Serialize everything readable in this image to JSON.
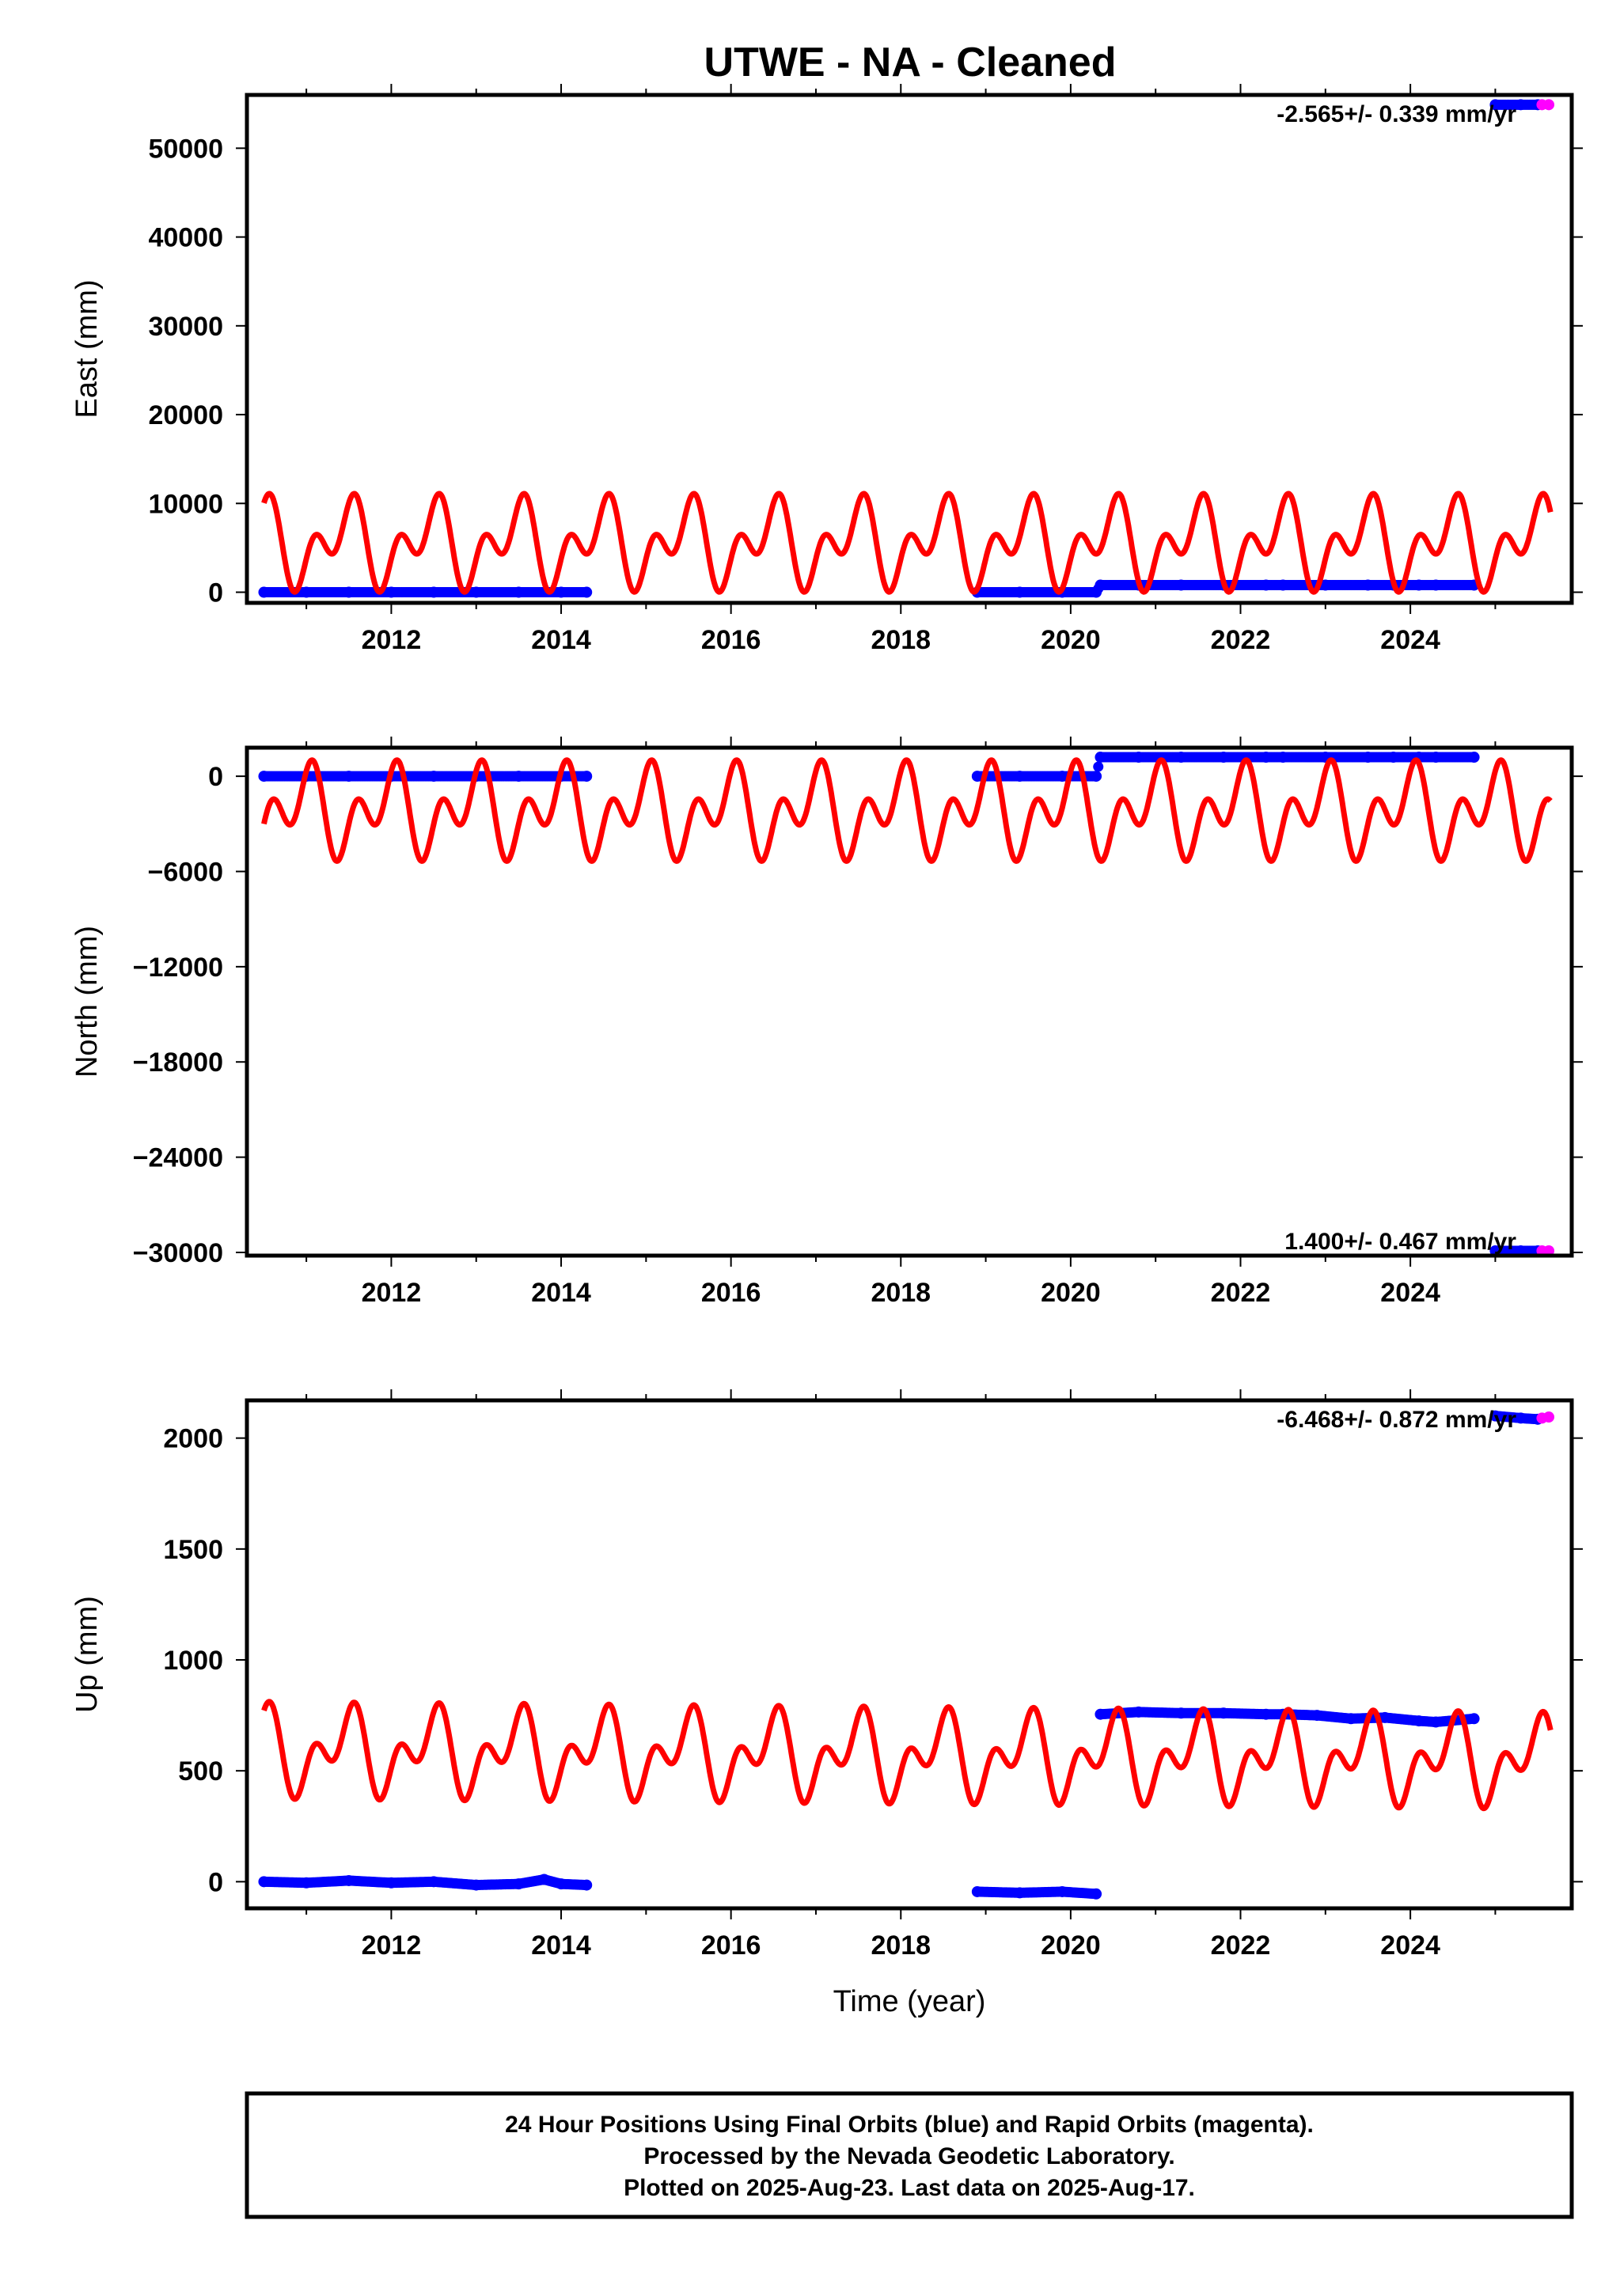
{
  "title": "UTWE  - NA - Cleaned",
  "footer": {
    "lines": [
      "24 Hour Positions Using Final Orbits (blue) and Rapid Orbits (magenta).",
      "Processed by the Nevada Geodetic Laboratory.",
      "Plotted on 2025-Aug-23. Last data on 2025-Aug-17."
    ]
  },
  "colors": {
    "final_orbits": "#0000ff",
    "rapid_orbits": "#ff00ff",
    "model_fit": "#ff0000"
  },
  "chart_data": [
    {
      "type": "scatter",
      "panel": "East",
      "ylabel": "East (mm)",
      "xlabel": "",
      "xlim": [
        2010.3,
        2025.9
      ],
      "ylim": [
        -1200,
        56000
      ],
      "x_ticks": [
        "2012",
        "2014",
        "2016",
        "2018",
        "2020",
        "2022",
        "2024"
      ],
      "y_ticks": [
        "0",
        "10000",
        "20000",
        "30000",
        "40000",
        "50000"
      ],
      "y_tick_values": [
        0,
        10000,
        20000,
        30000,
        40000,
        50000
      ],
      "rate_label": "-2.565+/- 0.339 mm/yr",
      "series": [
        {
          "points_final": [
            [
              2010.5,
              0
            ],
            [
              2011.0,
              0
            ],
            [
              2011.5,
              0
            ],
            [
              2012.0,
              0
            ],
            [
              2012.5,
              0
            ],
            [
              2013.0,
              0
            ],
            [
              2013.5,
              0
            ],
            [
              2014.0,
              0
            ],
            [
              2014.3,
              0
            ],
            [
              2018.9,
              0
            ],
            [
              2019.4,
              0
            ],
            [
              2019.9,
              0
            ],
            [
              2020.3,
              0
            ],
            [
              2020.35,
              800
            ],
            [
              2020.8,
              800
            ],
            [
              2021.3,
              800
            ],
            [
              2021.8,
              800
            ],
            [
              2022.3,
              800
            ],
            [
              2022.5,
              800
            ],
            [
              2023.0,
              800
            ],
            [
              2023.5,
              800
            ],
            [
              2023.8,
              800
            ],
            [
              2024.1,
              800
            ],
            [
              2024.3,
              800
            ],
            [
              2024.75,
              800
            ],
            [
              2025.0,
              54900
            ],
            [
              2025.3,
              54900
            ],
            [
              2025.5,
              54900
            ]
          ],
          "points_rapid": [
            [
              2025.55,
              54900
            ],
            [
              2025.63,
              54900
            ]
          ]
        }
      ],
      "model": {
        "offset": 5500,
        "annual_amp": 3200,
        "semiannual_amp": 3100,
        "annual_phase": 0.2,
        "semiannual_phase": -1.1
      }
    },
    {
      "type": "scatter",
      "panel": "North",
      "ylabel": "North (mm)",
      "xlabel": "",
      "xlim": [
        2010.3,
        2025.9
      ],
      "ylim": [
        -30200,
        1800
      ],
      "x_ticks": [
        "2012",
        "2014",
        "2016",
        "2018",
        "2020",
        "2022",
        "2024"
      ],
      "y_ticks": [
        "0",
        "−6000",
        "−12000",
        "−18000",
        "−24000",
        "−30000"
      ],
      "y_tick_values": [
        0,
        -6000,
        -12000,
        -18000,
        -24000,
        -30000
      ],
      "rate_label": "1.400+/- 0.467 mm/yr",
      "series": [
        {
          "points_final": [
            [
              2010.5,
              0
            ],
            [
              2011.0,
              0
            ],
            [
              2011.5,
              0
            ],
            [
              2012.0,
              0
            ],
            [
              2012.5,
              0
            ],
            [
              2013.0,
              0
            ],
            [
              2013.5,
              0
            ],
            [
              2014.0,
              0
            ],
            [
              2014.3,
              0
            ],
            [
              2018.9,
              0
            ],
            [
              2019.4,
              0
            ],
            [
              2019.9,
              0
            ],
            [
              2020.3,
              0
            ],
            [
              2020.35,
              1200
            ],
            [
              2020.8,
              1200
            ],
            [
              2021.3,
              1200
            ],
            [
              2021.8,
              1200
            ],
            [
              2022.3,
              1200
            ],
            [
              2022.5,
              1200
            ],
            [
              2023.0,
              1200
            ],
            [
              2023.5,
              1200
            ],
            [
              2023.8,
              1200
            ],
            [
              2024.1,
              1200
            ],
            [
              2024.3,
              1200
            ],
            [
              2024.75,
              1200
            ],
            [
              2025.0,
              -29900
            ],
            [
              2025.3,
              -29900
            ],
            [
              2025.5,
              -29900
            ]
          ],
          "points_rapid": [
            [
              2025.55,
              -29900
            ],
            [
              2025.63,
              -29900
            ]
          ]
        }
      ],
      "model": {
        "offset": -2200,
        "annual_amp": -1700,
        "semiannual_amp": 1900,
        "annual_phase": 0.2,
        "semiannual_phase": -1.1
      }
    },
    {
      "type": "scatter",
      "panel": "Up",
      "ylabel": "Up (mm)",
      "xlabel": "Time (year)",
      "xlim": [
        2010.3,
        2025.9
      ],
      "ylim": [
        -120,
        2170
      ],
      "x_ticks": [
        "2012",
        "2014",
        "2016",
        "2018",
        "2020",
        "2022",
        "2024"
      ],
      "y_ticks": [
        "0",
        "500",
        "1000",
        "1500",
        "2000"
      ],
      "y_tick_values": [
        0,
        500,
        1000,
        1500,
        2000
      ],
      "rate_label": "-6.468+/- 0.872 mm/yr",
      "series": [
        {
          "points_final": [
            [
              2010.5,
              0
            ],
            [
              2011.0,
              -5
            ],
            [
              2011.5,
              5
            ],
            [
              2012.0,
              -5
            ],
            [
              2012.5,
              0
            ],
            [
              2013.0,
              -15
            ],
            [
              2013.5,
              -10
            ],
            [
              2013.8,
              10
            ],
            [
              2014.0,
              -10
            ],
            [
              2014.3,
              -15
            ],
            [
              2018.9,
              -45
            ],
            [
              2019.4,
              -50
            ],
            [
              2019.9,
              -45
            ],
            [
              2020.3,
              -55
            ],
            [
              2020.35,
              755
            ],
            [
              2020.8,
              765
            ],
            [
              2021.3,
              760
            ],
            [
              2021.8,
              760
            ],
            [
              2022.3,
              755
            ],
            [
              2022.5,
              755
            ],
            [
              2022.9,
              750
            ],
            [
              2023.3,
              735
            ],
            [
              2023.7,
              740
            ],
            [
              2024.1,
              725
            ],
            [
              2024.3,
              720
            ],
            [
              2024.75,
              735
            ],
            [
              2025.0,
              2100
            ],
            [
              2025.3,
              2090
            ],
            [
              2025.5,
              2085
            ]
          ],
          "points_rapid": [
            [
              2025.55,
              2090
            ],
            [
              2025.63,
              2095
            ]
          ]
        }
      ],
      "model": {
        "offset": 590,
        "annual_amp": 130,
        "semiannual_amp": 120,
        "annual_phase": 0.2,
        "semiannual_phase": -1.1,
        "trend_per_yr": -3
      }
    }
  ]
}
